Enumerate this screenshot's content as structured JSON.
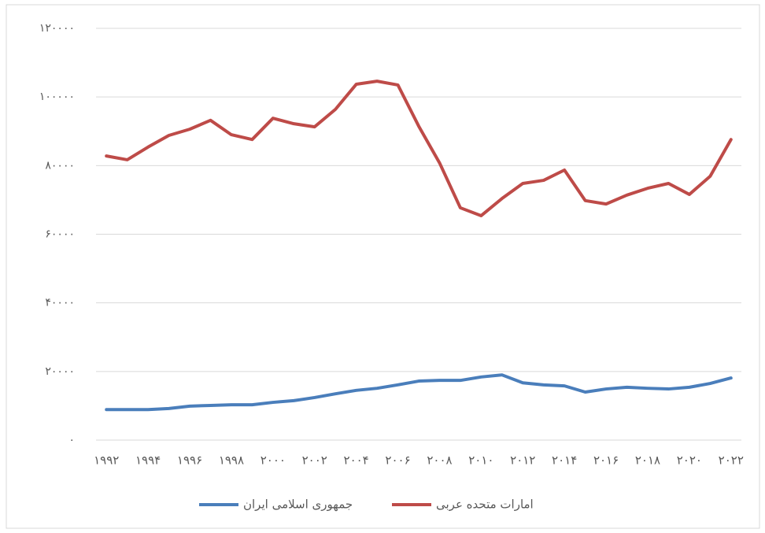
{
  "chart_data": {
    "type": "line",
    "categories": [
      "۱۹۹۲",
      null,
      "۱۹۹۴",
      null,
      "۱۹۹۶",
      null,
      "۱۹۹۸",
      null,
      "۲۰۰۰",
      null,
      "۲۰۰۲",
      null,
      "۲۰۰۴",
      null,
      "۲۰۰۶",
      null,
      "۲۰۰۸",
      null,
      "۲۰۱۰",
      null,
      "۲۰۱۲",
      null,
      "۲۰۱۴",
      null,
      "۲۰۱۶",
      null,
      "۲۰۱۸",
      null,
      "۲۰۲۰",
      null,
      "۲۰۲۲"
    ],
    "series": [
      {
        "name": "جمهوری اسلامی ایران",
        "color": "#4a7ebb",
        "values": [
          8900,
          8900,
          8900,
          9200,
          9900,
          10100,
          10300,
          10300,
          11000,
          11500,
          12400,
          13500,
          14500,
          15100,
          16100,
          17200,
          17400,
          17400,
          18400,
          19000,
          16700,
          16100,
          15800,
          14000,
          14900,
          15400,
          15100,
          14900,
          15400,
          16500,
          18100
        ]
      },
      {
        "name": "امارات متحده عربی",
        "color": "#be4b48",
        "values": [
          82800,
          81700,
          85400,
          88800,
          90600,
          93200,
          89000,
          87600,
          93800,
          92200,
          91300,
          96400,
          103700,
          104600,
          103500,
          91500,
          80800,
          67700,
          65400,
          70400,
          74800,
          75700,
          78700,
          69800,
          68800,
          71400,
          73400,
          74800,
          71600,
          76900,
          87600
        ]
      }
    ],
    "ylim": [
      0,
      120000
    ],
    "yticks": [
      {
        "value": 0,
        "label": "۰"
      },
      {
        "value": 20000,
        "label": "۲۰۰۰۰"
      },
      {
        "value": 40000,
        "label": "۴۰۰۰۰"
      },
      {
        "value": 60000,
        "label": "۶۰۰۰۰"
      },
      {
        "value": 80000,
        "label": "۸۰۰۰۰"
      },
      {
        "value": 100000,
        "label": "۱۰۰۰۰۰"
      },
      {
        "value": 120000,
        "label": "۱۲۰۰۰۰"
      }
    ],
    "grid": true,
    "legend": "bottom"
  }
}
